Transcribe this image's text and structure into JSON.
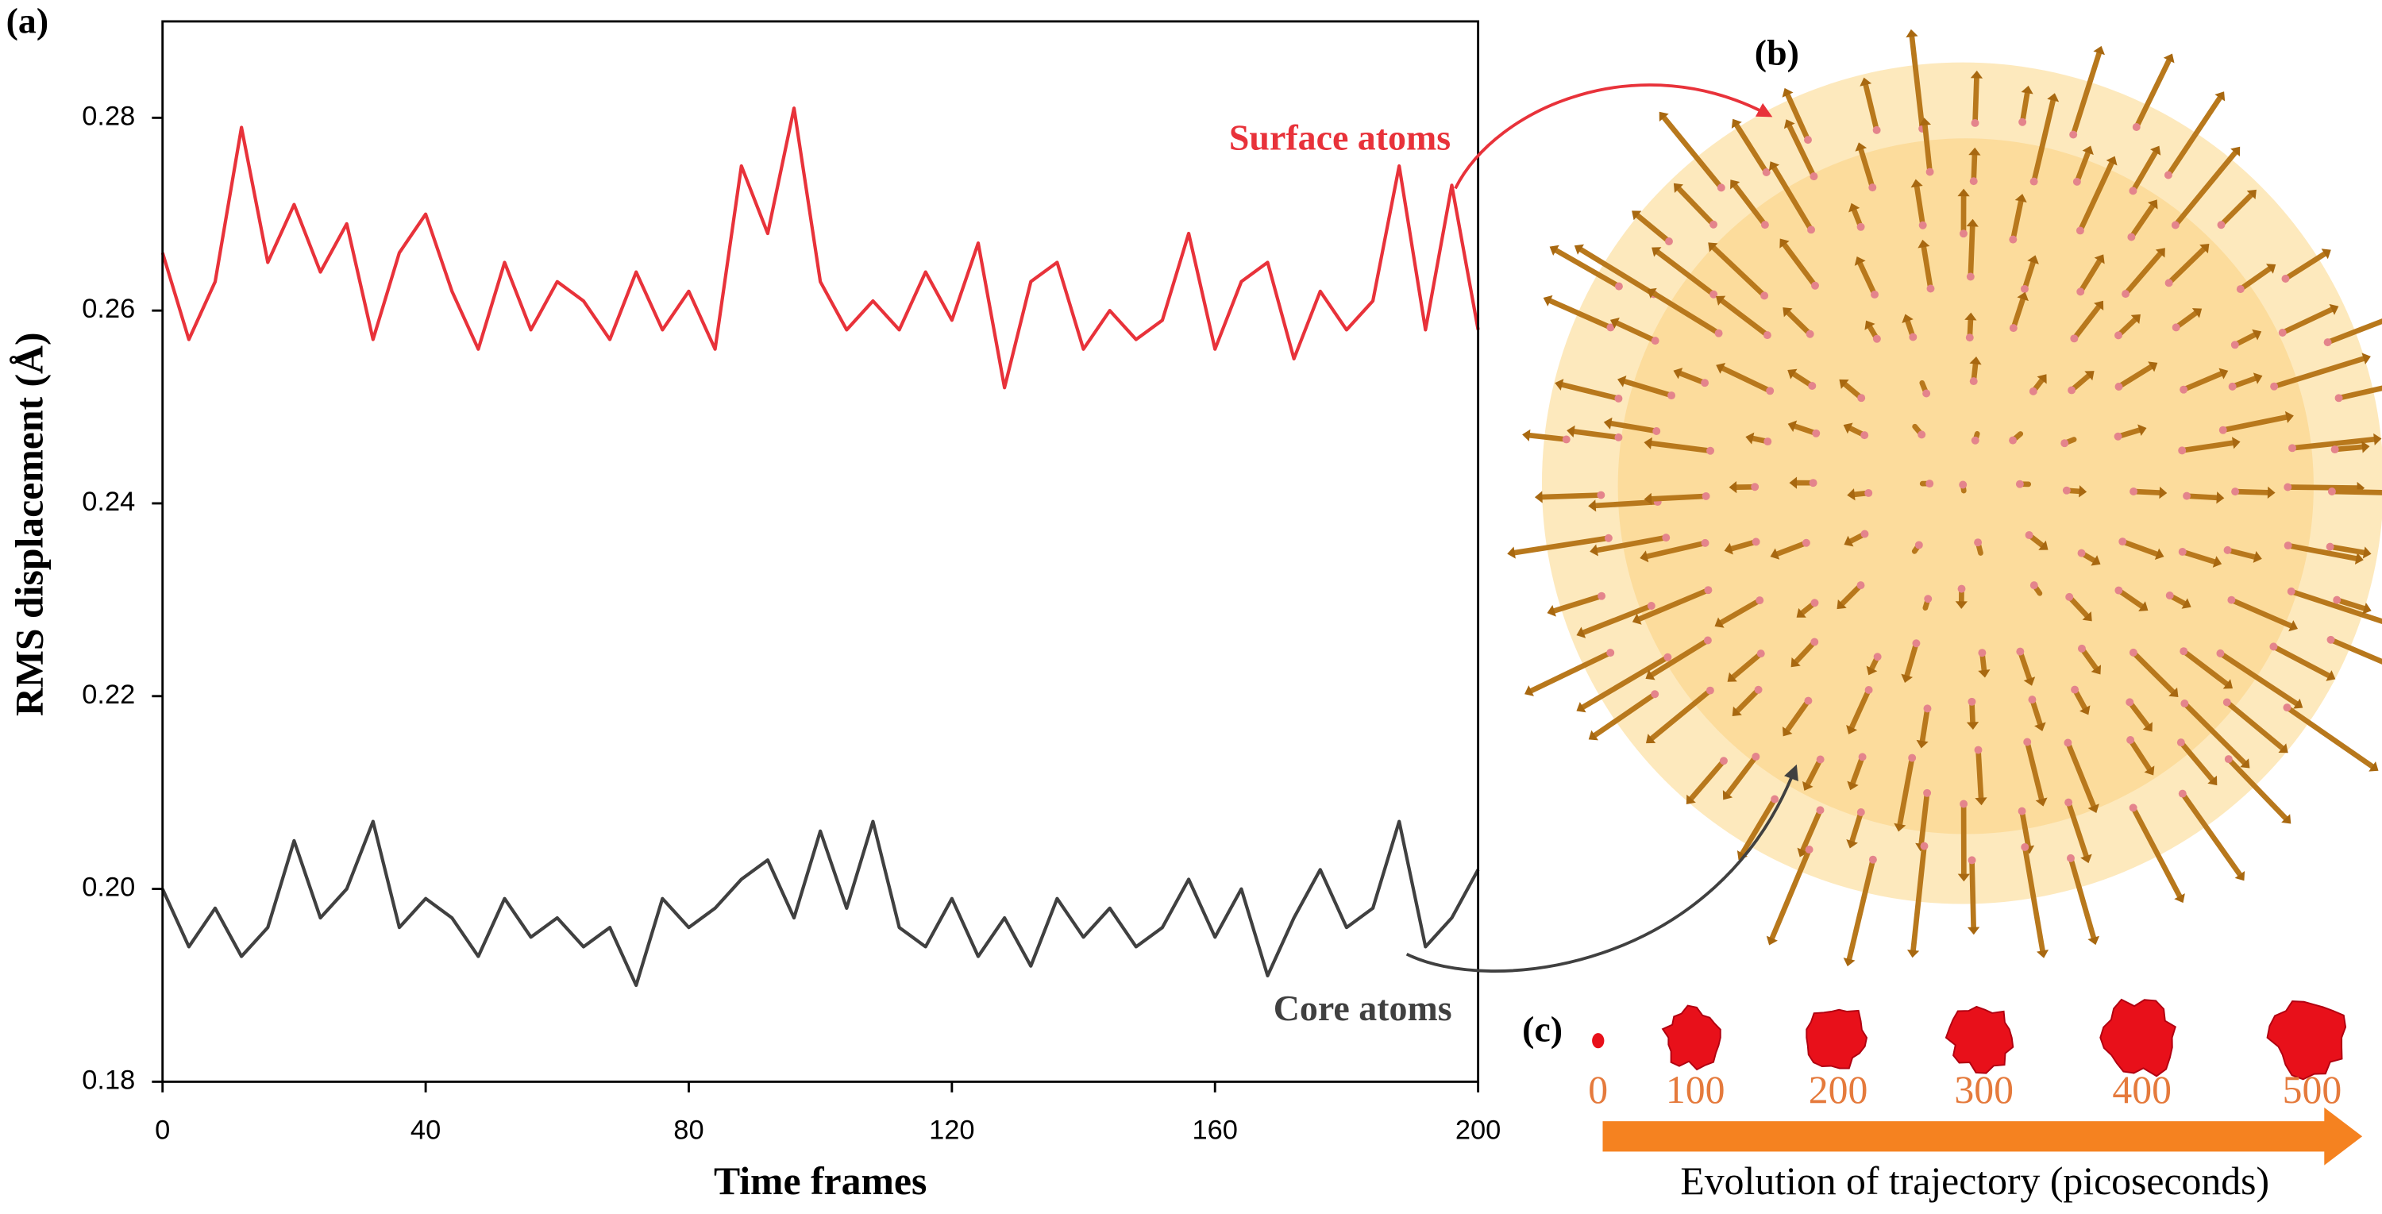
{
  "chart_data": {
    "type": "line",
    "x_label": "Time frames",
    "y_label": "RMS displacement (Å)",
    "x": [
      0,
      4,
      8,
      12,
      16,
      20,
      24,
      28,
      32,
      36,
      40,
      44,
      48,
      52,
      56,
      60,
      64,
      68,
      72,
      76,
      80,
      84,
      88,
      92,
      96,
      100,
      104,
      108,
      112,
      116,
      120,
      124,
      128,
      132,
      136,
      140,
      144,
      148,
      152,
      156,
      160,
      164,
      168,
      172,
      176,
      180,
      184,
      188,
      192,
      196,
      200
    ],
    "series": [
      {
        "name": "Surface atoms",
        "color": "#e8323a",
        "values": [
          0.266,
          0.257,
          0.263,
          0.279,
          0.265,
          0.271,
          0.264,
          0.269,
          0.257,
          0.266,
          0.27,
          0.262,
          0.256,
          0.265,
          0.258,
          0.263,
          0.261,
          0.257,
          0.264,
          0.258,
          0.262,
          0.256,
          0.275,
          0.268,
          0.281,
          0.263,
          0.258,
          0.261,
          0.258,
          0.264,
          0.259,
          0.267,
          0.252,
          0.263,
          0.265,
          0.256,
          0.26,
          0.257,
          0.259,
          0.268,
          0.256,
          0.263,
          0.265,
          0.255,
          0.262,
          0.258,
          0.261,
          0.275,
          0.258,
          0.273,
          0.258
        ]
      },
      {
        "name": "Core atoms",
        "color": "#404040",
        "values": [
          0.2,
          0.194,
          0.198,
          0.193,
          0.196,
          0.205,
          0.197,
          0.2,
          0.207,
          0.196,
          0.199,
          0.197,
          0.193,
          0.199,
          0.195,
          0.197,
          0.194,
          0.196,
          0.19,
          0.199,
          0.196,
          0.198,
          0.201,
          0.203,
          0.197,
          0.206,
          0.198,
          0.207,
          0.196,
          0.194,
          0.199,
          0.193,
          0.197,
          0.192,
          0.199,
          0.195,
          0.198,
          0.194,
          0.196,
          0.201,
          0.195,
          0.2,
          0.191,
          0.197,
          0.202,
          0.196,
          0.198,
          0.207,
          0.194,
          0.197,
          0.202
        ]
      }
    ],
    "xlim": [
      0,
      200
    ],
    "xticks": [
      0,
      40,
      80,
      120,
      160,
      200
    ],
    "ylim": [
      0.18,
      0.29
    ],
    "yticks": [
      0.18,
      {
        "value": 0.2,
        "label": "0.20"
      },
      0.22,
      0.24,
      0.26,
      0.28
    ]
  },
  "panels": {
    "a": "(a)",
    "b": "(b)",
    "c": "(c)"
  },
  "trajectory": {
    "ticks": [
      0,
      100,
      200,
      300,
      400,
      500
    ],
    "caption": "Evolution of trajectory (picoseconds)"
  }
}
